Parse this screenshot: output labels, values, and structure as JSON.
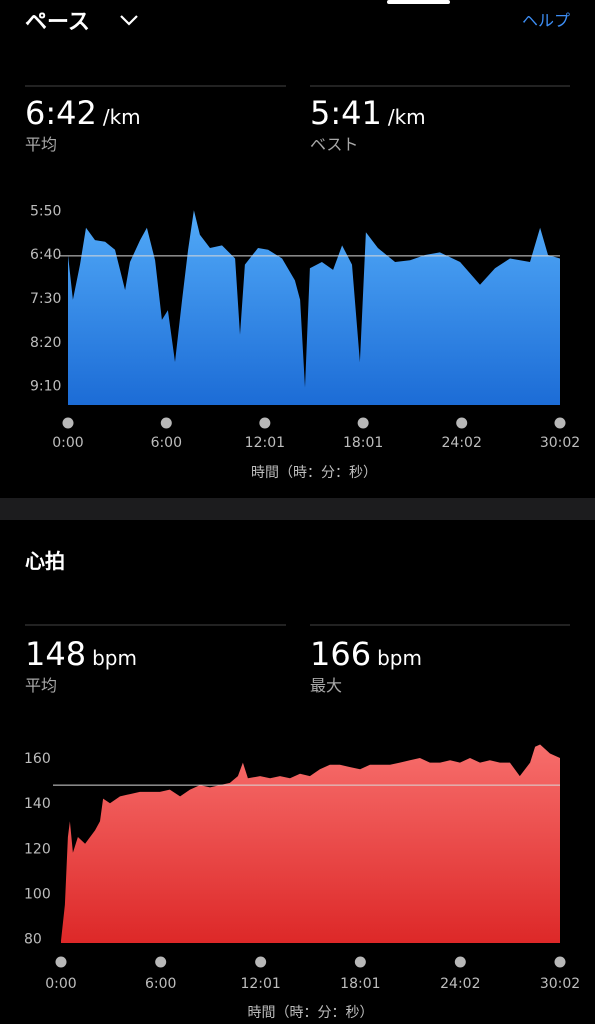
{
  "header": {
    "title": "ペース",
    "help": "ヘルプ"
  },
  "pace_stats": [
    {
      "value": "6:42",
      "unit": "/km",
      "label": "平均"
    },
    {
      "value": "5:41",
      "unit": "/km",
      "label": "ベスト"
    }
  ],
  "heart_title": "心拍",
  "heart_stats": [
    {
      "value": "148",
      "unit": "bpm",
      "label": "平均"
    },
    {
      "value": "166",
      "unit": "bpm",
      "label": "最大"
    }
  ],
  "chart_data": [
    {
      "type": "area",
      "xlabel": "時間（時：分：秒）",
      "x": [
        0,
        18,
        44,
        66,
        99,
        136,
        172,
        209,
        227,
        264,
        289,
        319,
        344,
        366,
        392,
        418,
        440,
        461,
        483,
        520,
        564,
        612,
        630,
        648,
        696,
        733,
        784,
        831,
        850,
        868,
        886,
        930,
        971,
        1004,
        1040,
        1069,
        1091,
        1135,
        1198,
        1253,
        1308,
        1362,
        1436,
        1509,
        1564,
        1619,
        1692,
        1729,
        1758,
        1802
      ],
      "values": [
        401,
        452,
        412,
        370,
        384,
        386,
        395,
        441,
        409,
        384,
        370,
        407,
        475,
        464,
        523,
        452,
        395,
        350,
        378,
        393,
        390,
        405,
        492,
        412,
        393,
        395,
        405,
        430,
        452,
        552,
        416,
        409,
        418,
        390,
        412,
        523,
        375,
        393,
        409,
        407,
        401,
        398,
        409,
        435,
        416,
        405,
        409,
        370,
        401,
        405
      ],
      "xlim": [
        0,
        1802
      ],
      "xticks": [
        {
          "value": 0,
          "label": "0:00"
        },
        {
          "value": 360,
          "label": "6:00"
        },
        {
          "value": 721,
          "label": "12:01"
        },
        {
          "value": 1081,
          "label": "18:01"
        },
        {
          "value": 1442,
          "label": "24:02"
        },
        {
          "value": 1802,
          "label": "30:02"
        }
      ],
      "ylim": [
        344,
        572
      ],
      "y_inverted": true,
      "yticks": [
        {
          "value": 350,
          "label": "5:50"
        },
        {
          "value": 400,
          "label": "6:40"
        },
        {
          "value": 450,
          "label": "7:30"
        },
        {
          "value": 500,
          "label": "8:20"
        },
        {
          "value": 550,
          "label": "9:10"
        }
      ],
      "avg_line": 402,
      "gradient": [
        "#52aaf8",
        "#1c6cd6"
      ]
    },
    {
      "type": "area",
      "xlabel": "時間（時：分：秒）",
      "x": [
        0,
        14,
        25,
        32,
        43,
        61,
        87,
        123,
        141,
        152,
        177,
        213,
        249,
        285,
        321,
        357,
        393,
        430,
        466,
        502,
        538,
        574,
        610,
        639,
        657,
        675,
        719,
        755,
        791,
        827,
        863,
        899,
        935,
        971,
        1007,
        1044,
        1080,
        1116,
        1152,
        1188,
        1224,
        1260,
        1296,
        1332,
        1369,
        1405,
        1441,
        1477,
        1513,
        1549,
        1585,
        1621,
        1657,
        1694,
        1712,
        1730,
        1766,
        1802
      ],
      "values": [
        79,
        95,
        125,
        132,
        118,
        125,
        122,
        128,
        132,
        142,
        140,
        143,
        144,
        145,
        145,
        145,
        146,
        143,
        146,
        148,
        147,
        148,
        149,
        152,
        158,
        151,
        152,
        151,
        152,
        151,
        153,
        152,
        155,
        157,
        157,
        156,
        155,
        157,
        157,
        157,
        158,
        159,
        160,
        158,
        158,
        159,
        158,
        160,
        158,
        159,
        158,
        158,
        152,
        158,
        165,
        166,
        162,
        160
      ],
      "xlim": [
        0,
        1802
      ],
      "xticks": [
        {
          "value": 0,
          "label": "0:00"
        },
        {
          "value": 360,
          "label": "6:00"
        },
        {
          "value": 721,
          "label": "12:01"
        },
        {
          "value": 1081,
          "label": "18:01"
        },
        {
          "value": 1442,
          "label": "24:02"
        },
        {
          "value": 1802,
          "label": "30:02"
        }
      ],
      "ylim": [
        78,
        168
      ],
      "y_inverted": false,
      "yticks": [
        80,
        100,
        120,
        140,
        160
      ],
      "avg_line": 148,
      "gradient": [
        "#f76e6c",
        "#dd2828"
      ]
    }
  ]
}
